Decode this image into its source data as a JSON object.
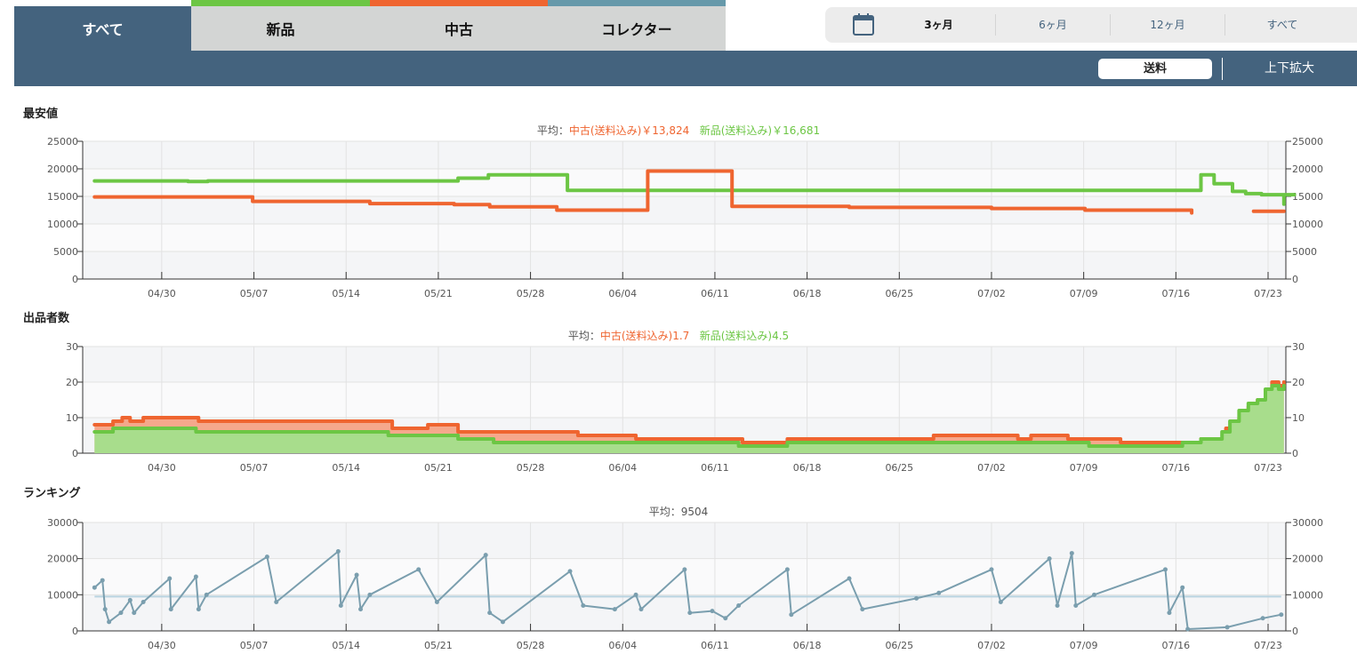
{
  "tabs": [
    {
      "label": "すべて",
      "stripe": ""
    },
    {
      "label": "新品",
      "stripe": "#6cc644"
    },
    {
      "label": "中古",
      "stripe": "#ef6530"
    },
    {
      "label": "コレクター",
      "stripe": "#6699aa"
    }
  ],
  "periods": {
    "icon": "calendar-icon",
    "items": [
      "3ヶ月",
      "6ヶ月",
      "12ヶ月",
      "すべて"
    ],
    "selected": "3ヶ月"
  },
  "toolbar": {
    "shipping": "送料",
    "zoom": "上下拡大"
  },
  "colors": {
    "new": "#6cc644",
    "used": "#ef6530",
    "rank": "#7a9eae",
    "header": "#44637e"
  },
  "chart_data": [
    {
      "type": "line",
      "title": "最安値",
      "avg_prefix": "平均：",
      "avg_used": "中古(送料込み)￥13,824",
      "avg_new": "新品(送料込み)￥16,681",
      "x_unit": "days since 04/30",
      "xlim": [
        -6,
        85.35
      ],
      "xticks": [
        "04/30",
        "05/07",
        "05/14",
        "05/21",
        "05/28",
        "06/04",
        "06/11",
        "06/18",
        "06/25",
        "07/02",
        "07/09",
        "07/16",
        "07/23"
      ],
      "ylim": [
        0,
        25000
      ],
      "yticks": [
        0,
        5000,
        10000,
        15000,
        20000,
        25000
      ],
      "series": [
        {
          "name": "新品",
          "step": true,
          "points": [
            [
              -5.1,
              17800
            ],
            [
              2,
              17700
            ],
            [
              3.5,
              17800
            ],
            [
              22.5,
              18300
            ],
            [
              24.8,
              18900
            ],
            [
              30.8,
              16100
            ],
            [
              78.9,
              18900
            ],
            [
              79.9,
              17300
            ],
            [
              81.3,
              15900
            ],
            [
              82.3,
              15500
            ],
            [
              83.5,
              15300
            ],
            [
              86,
              15300
            ],
            [
              85.2,
              13600
            ]
          ]
        },
        {
          "name": "中古",
          "step": true,
          "points": [
            [
              -5.1,
              14900
            ],
            [
              6.9,
              14100
            ],
            [
              15.8,
              13700
            ],
            [
              22.2,
              13500
            ],
            [
              24.9,
              13100
            ],
            [
              30,
              12500
            ],
            [
              36.9,
              19600
            ],
            [
              43.3,
              13200
            ],
            [
              52.2,
              13000
            ],
            [
              63,
              12800
            ],
            [
              70.1,
              12500
            ],
            [
              78.2,
              12000
            ],
            [
              79.2,
              null
            ],
            [
              82.9,
              12300
            ],
            [
              85.2,
              12300
            ]
          ]
        }
      ]
    },
    {
      "type": "area",
      "title": "出品者数",
      "avg_prefix": "平均：",
      "avg_used": "中古(送料込み)1.7",
      "avg_new": "新品(送料込み)4.5",
      "xlim": [
        -6,
        85.35
      ],
      "ylim": [
        0,
        30
      ],
      "yticks": [
        0,
        10,
        20,
        30
      ],
      "series": [
        {
          "name": "中古",
          "step": true,
          "points": [
            [
              -5.1,
              8
            ],
            [
              -3.7,
              9
            ],
            [
              -3,
              10
            ],
            [
              -2.4,
              9
            ],
            [
              -1.4,
              10
            ],
            [
              2.8,
              9
            ],
            [
              7.4,
              9
            ],
            [
              17.5,
              7
            ],
            [
              20.2,
              8
            ],
            [
              22.5,
              6
            ],
            [
              31.6,
              5
            ],
            [
              36,
              4
            ],
            [
              44.1,
              3
            ],
            [
              47.5,
              4
            ],
            [
              58.6,
              5
            ],
            [
              65,
              4
            ],
            [
              66,
              5
            ],
            [
              68.8,
              4
            ],
            [
              72.8,
              3
            ],
            [
              78.9,
              4
            ],
            [
              80.8,
              7
            ],
            [
              81.8,
              10
            ],
            [
              82.5,
              13
            ],
            [
              83.2,
              15
            ],
            [
              83.8,
              17
            ],
            [
              84.3,
              20
            ],
            [
              84.8,
              19
            ],
            [
              85.2,
              20
            ]
          ]
        },
        {
          "name": "新品",
          "step": true,
          "points": [
            [
              -5.1,
              6
            ],
            [
              -3.7,
              7
            ],
            [
              2.6,
              6
            ],
            [
              17.2,
              5
            ],
            [
              22.5,
              4
            ],
            [
              25.2,
              3
            ],
            [
              43.8,
              2
            ],
            [
              47.5,
              3
            ],
            [
              70.4,
              2
            ],
            [
              77.5,
              3
            ],
            [
              78.9,
              4
            ],
            [
              80.5,
              6
            ],
            [
              81.1,
              9
            ],
            [
              81.8,
              12
            ],
            [
              82.5,
              14
            ],
            [
              83.2,
              15
            ],
            [
              83.8,
              18
            ],
            [
              84.3,
              19
            ],
            [
              84.8,
              18
            ],
            [
              85.2,
              19
            ]
          ]
        }
      ]
    },
    {
      "type": "line",
      "title": "ランキング",
      "avg_prefix": "平均：",
      "avg_value": "9504",
      "average": 9504,
      "xlim": [
        -6,
        85.35
      ],
      "ylim": [
        0,
        30000
      ],
      "yticks": [
        0,
        10000,
        20000,
        30000
      ],
      "series": [
        {
          "name": "ランキング",
          "step": false,
          "points": [
            [
              -5.1,
              12000
            ],
            [
              -4.5,
              14000
            ],
            [
              -4.3,
              6000
            ],
            [
              -4,
              2500
            ],
            [
              -3.1,
              5000
            ],
            [
              -2.4,
              8500
            ],
            [
              -2.1,
              5000
            ],
            [
              -1.4,
              8000
            ],
            [
              0.6,
              14500
            ],
            [
              0.7,
              6000
            ],
            [
              2.6,
              15000
            ],
            [
              2.8,
              6000
            ],
            [
              3.4,
              10000
            ],
            [
              8,
              20500
            ],
            [
              8.7,
              8000
            ],
            [
              13.4,
              22000
            ],
            [
              13.6,
              7000
            ],
            [
              14.8,
              15500
            ],
            [
              15.1,
              6000
            ],
            [
              15.8,
              10000
            ],
            [
              19.5,
              17000
            ],
            [
              20.9,
              8000
            ],
            [
              24.6,
              21000
            ],
            [
              24.9,
              5000
            ],
            [
              25.9,
              2500
            ],
            [
              31,
              16500
            ],
            [
              32,
              7000
            ],
            [
              34.4,
              6000
            ],
            [
              36,
              10000
            ],
            [
              36.4,
              6000
            ],
            [
              39.7,
              17000
            ],
            [
              40.1,
              5000
            ],
            [
              41.8,
              5500
            ],
            [
              42.8,
              3500
            ],
            [
              43.8,
              7000
            ],
            [
              47.5,
              17000
            ],
            [
              47.8,
              4500
            ],
            [
              52.2,
              14500
            ],
            [
              53.2,
              6000
            ],
            [
              57.3,
              9000
            ],
            [
              59,
              10500
            ],
            [
              63,
              17000
            ],
            [
              63.7,
              8000
            ],
            [
              67.4,
              20000
            ],
            [
              68,
              7000
            ],
            [
              69.1,
              21500
            ],
            [
              69.4,
              7000
            ],
            [
              70.8,
              10000
            ],
            [
              76.2,
              17000
            ],
            [
              76.5,
              5000
            ],
            [
              77.5,
              12000
            ],
            [
              77.9,
              500
            ],
            [
              80.9,
              1000
            ],
            [
              83.6,
              3500
            ],
            [
              85,
              4500
            ]
          ]
        }
      ]
    }
  ]
}
